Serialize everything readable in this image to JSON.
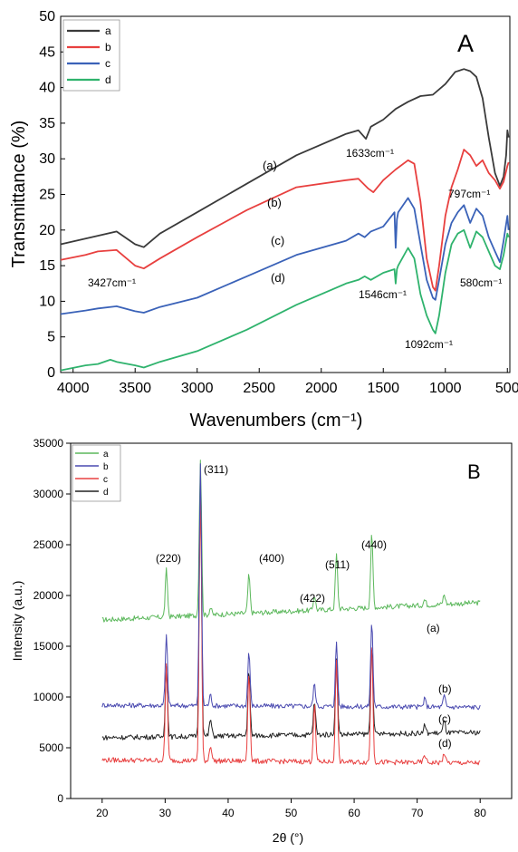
{
  "chart_data": [
    {
      "type": "line",
      "panel_label": "A",
      "xlabel": "Wavenumbers (cm⁻¹)",
      "ylabel": "Transmittance (%)",
      "xlim": [
        4100,
        480
      ],
      "ylim": [
        0,
        50
      ],
      "x_ticks": [
        4000,
        3500,
        3000,
        2500,
        2000,
        1500,
        1000,
        500
      ],
      "y_ticks": [
        0,
        5,
        10,
        15,
        20,
        25,
        30,
        35,
        40,
        45,
        50
      ],
      "x_reversed": true,
      "grid": false,
      "legend_position": "top-left",
      "series": [
        {
          "name": "a",
          "color": "#3a3a3a",
          "x": [
            4100,
            3900,
            3800,
            3650,
            3500,
            3430,
            3300,
            3000,
            2600,
            2200,
            1800,
            1700,
            1640,
            1600,
            1500,
            1400,
            1300,
            1200,
            1100,
            1000,
            920,
            850,
            800,
            750,
            700,
            650,
            600,
            560,
            530,
            510,
            500,
            490
          ],
          "y": [
            18,
            18.8,
            19.2,
            19.8,
            18,
            17.6,
            19.5,
            22.5,
            26.5,
            30.5,
            33.5,
            34,
            32.8,
            34.5,
            35.5,
            37,
            38,
            38.8,
            39,
            40.5,
            42.2,
            42.6,
            42.3,
            41.5,
            38.5,
            33,
            28,
            26.2,
            27.5,
            30.5,
            34,
            33
          ]
        },
        {
          "name": "b",
          "color": "#e8403f",
          "x": [
            4100,
            3900,
            3800,
            3650,
            3500,
            3430,
            3300,
            3000,
            2600,
            2200,
            1800,
            1700,
            1620,
            1580,
            1500,
            1400,
            1300,
            1250,
            1200,
            1150,
            1100,
            1080,
            1050,
            1000,
            950,
            900,
            850,
            800,
            750,
            700,
            650,
            600,
            560,
            530,
            500,
            490
          ],
          "y": [
            15.8,
            16.5,
            17,
            17.2,
            15,
            14.6,
            16,
            19,
            22.8,
            26,
            27,
            27.2,
            25.8,
            25.3,
            27,
            28.5,
            29.8,
            29.3,
            24,
            16,
            12,
            11.5,
            15,
            22,
            26,
            28.5,
            31.3,
            30.5,
            29,
            29.8,
            28,
            27,
            25.8,
            26.8,
            29,
            29.5
          ]
        },
        {
          "name": "c",
          "color": "#3a62b8",
          "x": [
            4100,
            3900,
            3800,
            3650,
            3500,
            3430,
            3300,
            3000,
            2600,
            2200,
            1800,
            1700,
            1650,
            1600,
            1500,
            1410,
            1400,
            1390,
            1380,
            1300,
            1250,
            1200,
            1150,
            1100,
            1080,
            1050,
            1000,
            950,
            900,
            850,
            800,
            750,
            700,
            650,
            600,
            560,
            530,
            500,
            490
          ],
          "y": [
            8.2,
            8.7,
            9,
            9.3,
            8.6,
            8.4,
            9.2,
            10.5,
            13.5,
            16.5,
            18.5,
            19.5,
            19,
            19.8,
            20.5,
            22.5,
            17.5,
            21.5,
            22.5,
            24.5,
            23,
            18,
            13,
            10.5,
            10.2,
            13,
            18,
            21,
            22.5,
            23.5,
            21,
            23,
            22,
            19,
            17,
            15.5,
            18.5,
            22,
            20
          ]
        },
        {
          "name": "d",
          "color": "#2fb36d",
          "x": [
            4100,
            3900,
            3800,
            3700,
            3650,
            3500,
            3430,
            3300,
            3000,
            2600,
            2200,
            1800,
            1700,
            1650,
            1600,
            1500,
            1410,
            1400,
            1390,
            1380,
            1300,
            1250,
            1200,
            1150,
            1100,
            1080,
            1050,
            1000,
            950,
            900,
            850,
            800,
            750,
            700,
            650,
            600,
            560,
            530,
            500,
            490
          ],
          "y": [
            0.3,
            1,
            1.2,
            1.8,
            1.5,
            1,
            0.7,
            1.5,
            3,
            6,
            9.5,
            12.5,
            13,
            13.5,
            13,
            14,
            14.5,
            12.5,
            14.5,
            15,
            17.5,
            16,
            11,
            8,
            6,
            5.5,
            8,
            14,
            18,
            19.5,
            20,
            17.5,
            19.8,
            19,
            17,
            15,
            14.5,
            16.5,
            19.5,
            19
          ]
        }
      ],
      "annotations": [
        "(a)",
        "(b)",
        "(c)",
        "(d)",
        "3427cm⁻¹",
        "1633cm⁻¹",
        "797cm⁻¹",
        "1546cm⁻¹",
        "580cm⁻¹",
        "1092cm⁻¹"
      ]
    },
    {
      "type": "line",
      "panel_label": "B",
      "xlabel": "2θ (°)",
      "ylabel": "Intensity (a.u.)",
      "xlim": [
        15,
        85
      ],
      "ylim": [
        0,
        35000
      ],
      "x_ticks": [
        20,
        30,
        40,
        50,
        60,
        70,
        80
      ],
      "y_ticks": [
        0,
        5000,
        10000,
        15000,
        20000,
        25000,
        30000,
        35000
      ],
      "grid": false,
      "legend_position": "top-left",
      "peaks": [
        30.2,
        35.6,
        37.2,
        43.3,
        53.7,
        57.2,
        62.8,
        71.2,
        74.3
      ],
      "series": [
        {
          "name": "a",
          "color": "#5cb85c",
          "baseline_start": 17600,
          "baseline_end": 19300,
          "peak_heights": [
            22500,
            33500,
            18800,
            22000,
            20000,
            24000,
            26000,
            19600,
            20100
          ]
        },
        {
          "name": "b",
          "color": "#4a4ab0",
          "baseline_start": 9200,
          "baseline_end": 9000,
          "peak_heights": [
            16000,
            33000,
            10200,
            14500,
            11300,
            15300,
            17500,
            9800,
            10100
          ]
        },
        {
          "name": "c",
          "color": "#e84040",
          "baseline_start": 3800,
          "baseline_end": 3500,
          "peak_heights": [
            13200,
            30500,
            5300,
            12600,
            9200,
            13500,
            15200,
            4300,
            4500
          ]
        },
        {
          "name": "d",
          "color": "#222222",
          "baseline_start": 6000,
          "baseline_end": 6500,
          "peak_heights": [
            13000,
            31300,
            7800,
            12500,
            9500,
            13600,
            15200,
            7200,
            7700
          ]
        }
      ],
      "annotations": [
        "(220)",
        "(311)",
        "(400)",
        "(422)",
        "(511)",
        "(440)",
        "(a)",
        "(b)",
        "(c)",
        "(d)"
      ]
    }
  ]
}
